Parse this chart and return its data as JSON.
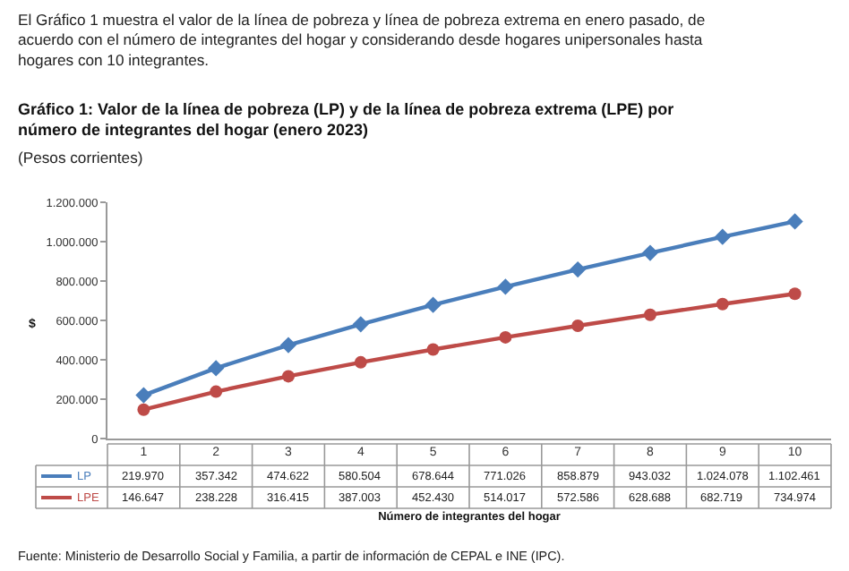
{
  "chart_data": {
    "type": "line",
    "title": "Gráfico 1: Valor de la línea de pobreza (LP) y de la línea de pobreza extrema (LPE) por número de integrantes del hogar (enero 2023)",
    "subtitle": "(Pesos corrientes)",
    "xlabel": "Número de integrantes del hogar",
    "ylabel": "$",
    "annotations": [
      "El Gráfico 1 muestra el valor de la línea de pobreza y línea de pobreza extrema en enero pasado, de acuerdo con el número de integrantes del hogar y considerando desde hogares unipersonales hasta hogares con 10 integrantes.",
      "Fuente: Ministerio de Desarrollo Social y Familia, a partir de información de CEPAL e INE (IPC)."
    ],
    "categories": [
      "1",
      "2",
      "3",
      "4",
      "5",
      "6",
      "7",
      "8",
      "9",
      "10"
    ],
    "series": [
      {
        "name": "LP",
        "color": "#4a7ebb",
        "marker": "diamond",
        "values": [
          219970,
          357342,
          474622,
          580504,
          678644,
          771026,
          858879,
          943032,
          1024078,
          1102461
        ],
        "value_labels": [
          "219.970",
          "357.342",
          "474.622",
          "580.504",
          "678.644",
          "771.026",
          "858.879",
          "943.032",
          "1.024.078",
          "1.102.461"
        ]
      },
      {
        "name": "LPE",
        "color": "#be4b48",
        "marker": "circle",
        "values": [
          146647,
          238228,
          316415,
          387003,
          452430,
          514017,
          572586,
          628688,
          682719,
          734974
        ],
        "value_labels": [
          "146.647",
          "238.228",
          "316.415",
          "387.003",
          "452.430",
          "514.017",
          "572.586",
          "628.688",
          "682.719",
          "734.974"
        ]
      }
    ],
    "ylim": [
      0,
      1200000
    ],
    "yticks": [
      {
        "value": 0,
        "label": "0"
      },
      {
        "value": 200000,
        "label": "200.000"
      },
      {
        "value": 400000,
        "label": "400.000"
      },
      {
        "value": 600000,
        "label": "600.000"
      },
      {
        "value": 800000,
        "label": "800.000"
      },
      {
        "value": 1000000,
        "label": "1.000.000"
      },
      {
        "value": 1200000,
        "label": "1.200.000"
      }
    ],
    "legend": "left",
    "line_style": "solid"
  }
}
